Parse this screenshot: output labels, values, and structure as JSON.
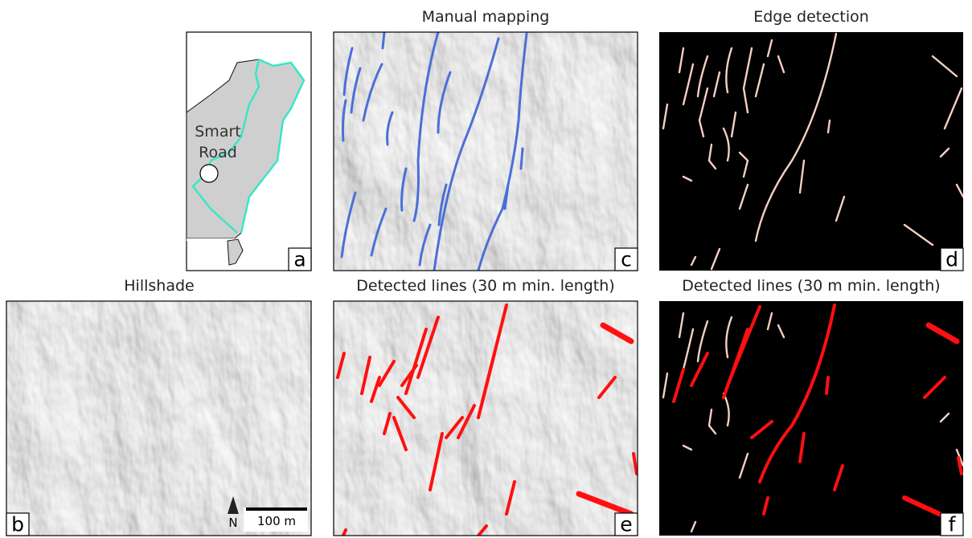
{
  "panel_a": {
    "letter": "a",
    "label_line1": "Smart",
    "label_line2": "Road"
  },
  "panel_b": {
    "title": "Hillshade",
    "letter": "b",
    "north": "N",
    "scale_bar": "100 m"
  },
  "panel_c": {
    "title": "Manual mapping",
    "letter": "c"
  },
  "panel_d": {
    "title": "Edge detection",
    "letter": "d"
  },
  "panel_e": {
    "title": "Detected lines (30 m min. length)",
    "letter": "e"
  },
  "panel_f": {
    "title": "Detected lines (30 m min. length)",
    "letter": "f"
  }
}
